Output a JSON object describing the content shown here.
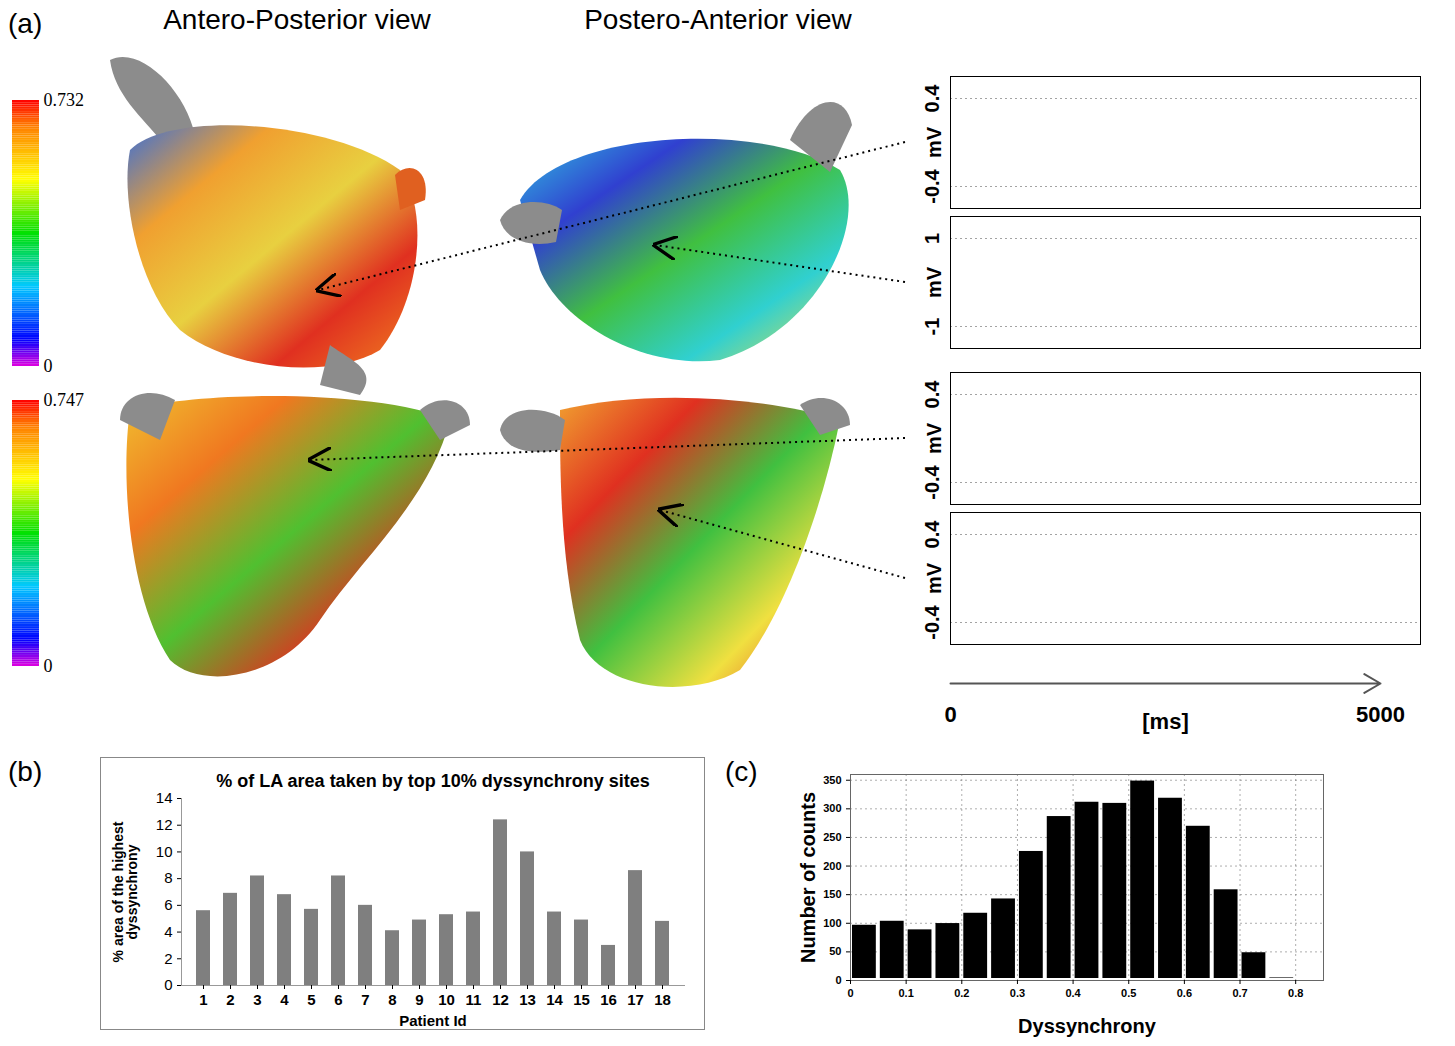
{
  "panel_a": {
    "label": "(a)",
    "views": [
      "Antero-Posterior view",
      "Postero-Anterior view"
    ],
    "colorbars": [
      {
        "ylim": [
          0,
          0.732
        ],
        "yticks": [
          0,
          0.732
        ]
      },
      {
        "ylim": [
          0,
          0.747
        ],
        "yticks": [
          0,
          0.747
        ]
      }
    ],
    "traces": [
      {
        "ylabel": "mV",
        "ylim": [
          -0.6,
          0.6
        ],
        "yticks": [
          -0.4,
          0.4
        ]
      },
      {
        "ylabel": "mV",
        "ylim": [
          -1.5,
          1.5
        ],
        "yticks": [
          -1,
          1
        ]
      },
      {
        "ylabel": "mV",
        "ylim": [
          -0.6,
          0.6
        ],
        "yticks": [
          -0.4,
          0.4
        ]
      },
      {
        "ylabel": "mV",
        "ylim": [
          -0.6,
          0.6
        ],
        "yticks": [
          -0.4,
          0.4
        ]
      }
    ],
    "time_axis": {
      "label": "[ms]",
      "xlim": [
        0,
        5000
      ],
      "xticks": [
        0,
        5000
      ]
    }
  },
  "chart_data": [
    {
      "label": "(b)",
      "type": "bar",
      "title": "% of LA area taken by top 10% dyssynchrony sites",
      "xlabel": "Patient Id",
      "ylabel": "% area of the highest dyssynchrony",
      "categories": [
        "1",
        "2",
        "3",
        "4",
        "5",
        "6",
        "7",
        "8",
        "9",
        "10",
        "11",
        "12",
        "13",
        "14",
        "15",
        "16",
        "17",
        "18"
      ],
      "values": [
        5.6,
        6.9,
        8.2,
        6.8,
        5.7,
        8.2,
        6.0,
        4.1,
        4.9,
        5.3,
        5.5,
        12.4,
        10.0,
        5.5,
        4.9,
        3.0,
        8.6,
        4.8
      ],
      "color": "#7f7f7f",
      "ylim": [
        0,
        14
      ],
      "yticks": [
        0,
        2,
        4,
        6,
        8,
        10,
        12,
        14
      ],
      "grid": false
    },
    {
      "label": "(c)",
      "type": "histogram",
      "xlabel": "Dyssynchrony",
      "ylabel": "Number of counts",
      "bins": [
        0,
        0.05,
        0.1,
        0.15,
        0.2,
        0.25,
        0.3,
        0.35,
        0.4,
        0.45,
        0.5,
        0.55,
        0.6,
        0.65,
        0.7,
        0.75,
        0.8
      ],
      "values": [
        100,
        107,
        92,
        103,
        121,
        146,
        229,
        290,
        315,
        313,
        352,
        322,
        273,
        162,
        52,
        8
      ],
      "color": "#000000",
      "xlim": [
        0,
        0.85
      ],
      "ylim": [
        0,
        360
      ],
      "xticks": [
        0,
        0.1,
        0.2,
        0.3,
        0.4,
        0.5,
        0.6,
        0.7,
        0.8
      ],
      "yticks": [
        0,
        50,
        100,
        150,
        200,
        250,
        300,
        350
      ],
      "grid": true
    }
  ]
}
